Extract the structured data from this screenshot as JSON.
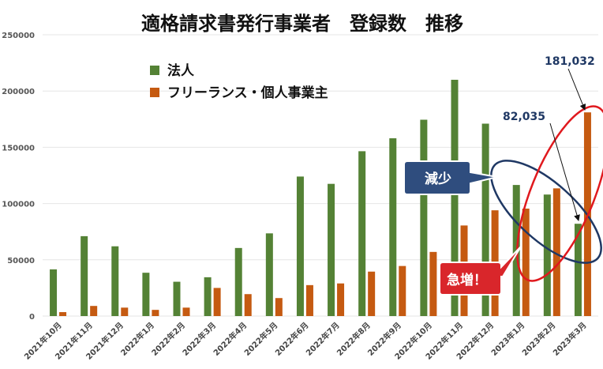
{
  "chart_data": {
    "type": "bar",
    "title": "適格請求書発行事業者　登録数　推移",
    "categories": [
      "2021年10月",
      "2021年11月",
      "2021年12月",
      "2022年1月",
      "2022年2月",
      "2022年3月",
      "2022年4月",
      "2022年5月",
      "2022年6月",
      "2022年7月",
      "2022年8月",
      "2022年9月",
      "2022年10月",
      "2022年11月",
      "2022年12月",
      "2023年1月",
      "2023年2月",
      "2023年3月"
    ],
    "series": [
      {
        "name": "法人",
        "color": "#548235",
        "values": [
          41500,
          71000,
          62000,
          38500,
          30500,
          34500,
          60500,
          73500,
          124000,
          117500,
          146500,
          158000,
          174500,
          210000,
          171000,
          116500,
          108000,
          82035
        ]
      },
      {
        "name": "フリーランス・個人事業主",
        "color": "#c55a11",
        "values": [
          3500,
          9000,
          7500,
          5500,
          7500,
          25000,
          19500,
          16000,
          27500,
          29000,
          39500,
          44500,
          57000,
          80500,
          94000,
          95500,
          113500,
          181032
        ]
      }
    ],
    "ylim": [
      0,
      250000
    ],
    "yticks": [
      0,
      50000,
      100000,
      150000,
      200000,
      250000
    ],
    "grid": true,
    "legend": "top-left",
    "annotations": {
      "label_corp_last": "82,035",
      "label_indiv_last": "181,032",
      "callout_decrease": "減少",
      "callout_surge": "急増！"
    }
  }
}
